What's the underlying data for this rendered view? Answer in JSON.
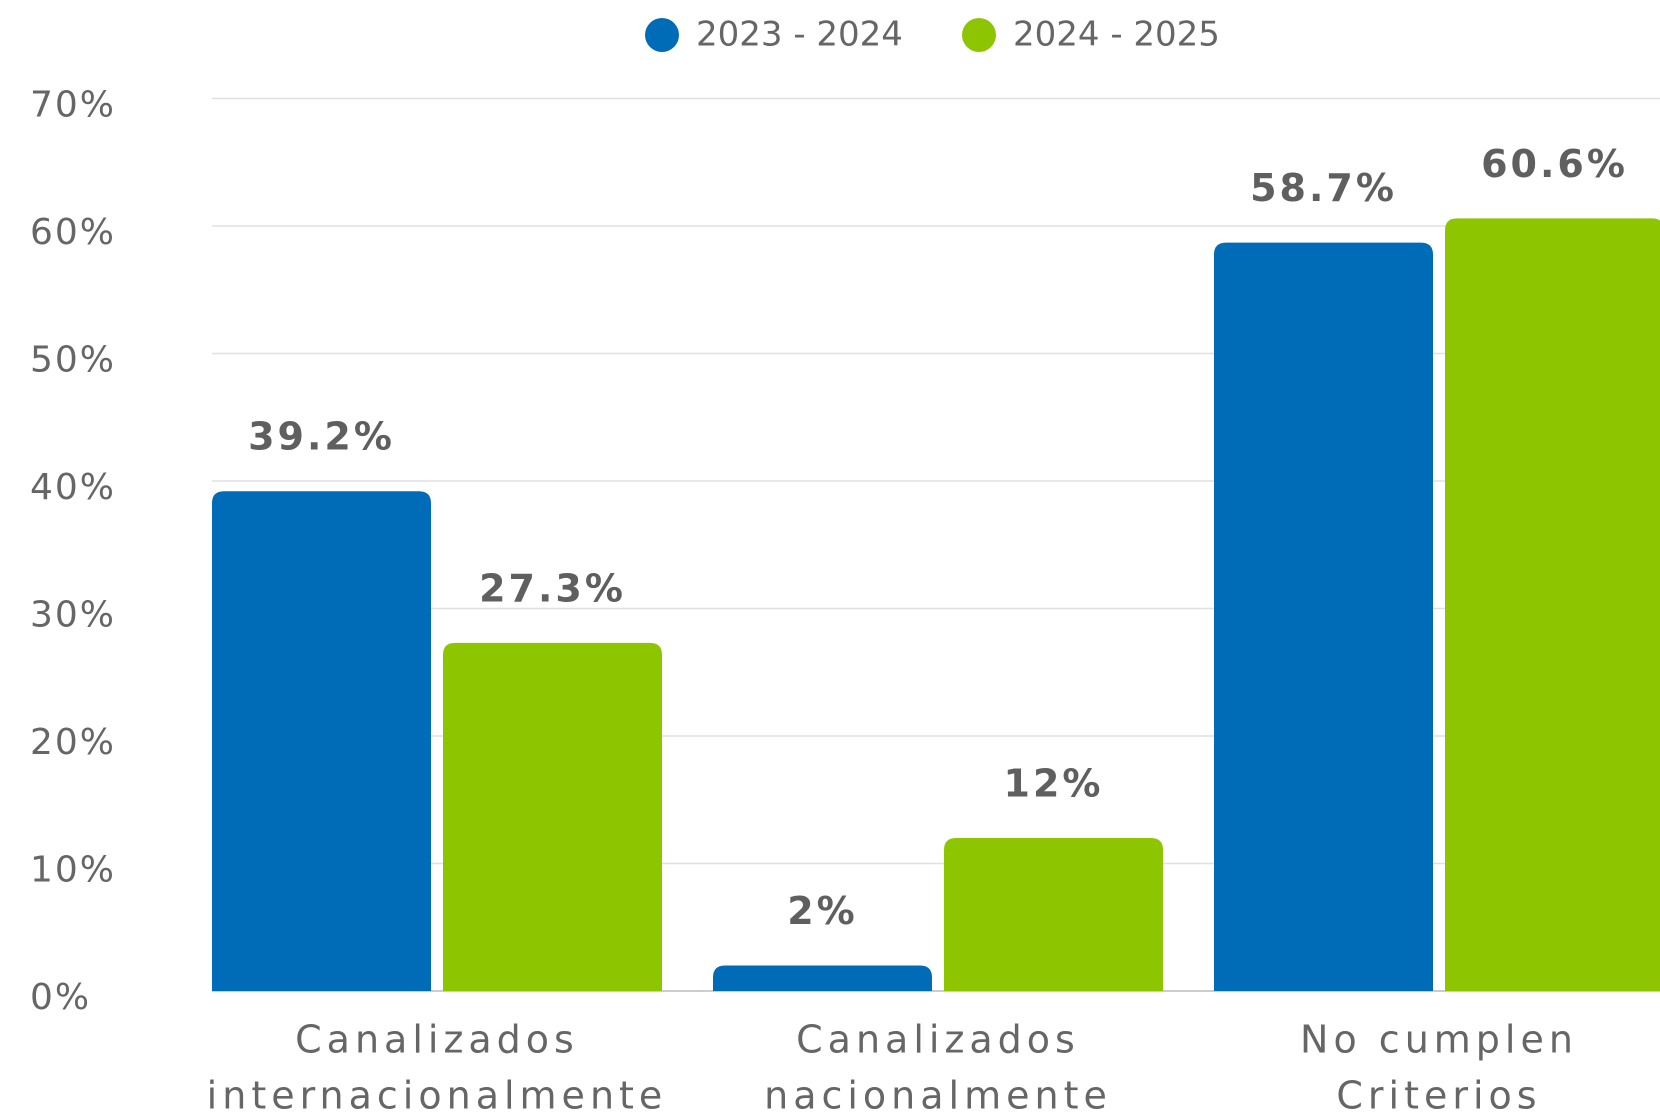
{
  "chart_data": {
    "type": "bar",
    "categories": [
      [
        "Canalizados",
        "internacionalmente"
      ],
      [
        "Canalizados",
        "nacionalmente"
      ],
      [
        "No cumplen",
        "Criterios"
      ]
    ],
    "series": [
      {
        "name": "2023 - 2024",
        "color": "#006bb6",
        "values": [
          39.2,
          2,
          58.7
        ],
        "value_labels": [
          "39.2%",
          "2%",
          "58.7%"
        ]
      },
      {
        "name": "2024 - 2025",
        "color": "#8dc600",
        "values": [
          27.3,
          12,
          60.6
        ],
        "value_labels": [
          "27.3%",
          "12%",
          "60.6%"
        ]
      }
    ],
    "ylim": [
      0,
      70
    ],
    "yticks": [
      {
        "value": 0,
        "label": "0%"
      },
      {
        "value": 10,
        "label": "10%"
      },
      {
        "value": 20,
        "label": "20%"
      },
      {
        "value": 30,
        "label": "30%"
      },
      {
        "value": 40,
        "label": "40%"
      },
      {
        "value": 50,
        "label": "50%"
      },
      {
        "value": 60,
        "label": "60%"
      },
      {
        "value": 70,
        "label": "70%"
      }
    ],
    "grid": true,
    "legend": "top"
  }
}
